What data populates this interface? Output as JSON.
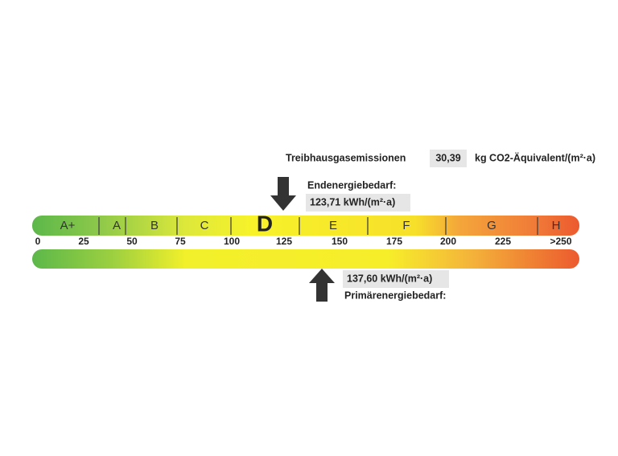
{
  "emissions": {
    "label": "Treibhausgasemissionen",
    "value": "30,39",
    "unit": "kg CO2-Äquivalent/(m²·a)"
  },
  "final_energy": {
    "label": "Endenergiebedarf:",
    "value": "123,71 kWh/(m²·a)",
    "class": "D"
  },
  "primary_energy": {
    "label": "Primärenergiebedarf:",
    "value": "137,60 kWh/(m²·a)"
  },
  "scale": {
    "classes": [
      "A+",
      "A",
      "B",
      "C",
      "D",
      "E",
      "F",
      "G",
      "H"
    ],
    "ticks": [
      "0",
      "25",
      "50",
      "75",
      "100",
      "125",
      "150",
      "175",
      "200",
      "225",
      ">250"
    ]
  }
}
